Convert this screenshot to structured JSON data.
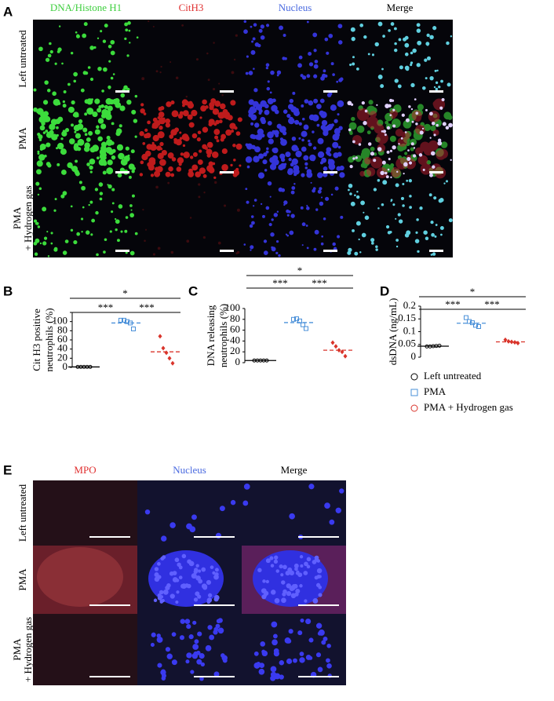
{
  "panel_a": {
    "label": "A",
    "columns": [
      "DNA/Histone  H1",
      "CitH3",
      "Nucleus",
      "Merge"
    ],
    "rows": [
      [
        "Left  untreated"
      ],
      [
        "PMA"
      ],
      [
        "PMA",
        "+ Hydrogen  gas"
      ]
    ]
  },
  "panel_e": {
    "label": "E",
    "columns": [
      "MPO",
      "Nucleus",
      "Merge"
    ],
    "rows": [
      [
        "Left  untreated"
      ],
      [
        "PMA"
      ],
      [
        "PMA",
        "+ Hydrogen  gas"
      ]
    ]
  },
  "chart_data": [
    {
      "type": "scatter",
      "panel": "B",
      "ylabel": [
        "Cit H3 positive",
        "neutrophils  (%)"
      ],
      "ylim": [
        0,
        120
      ],
      "yticks": [
        0,
        20,
        40,
        60,
        80,
        100
      ],
      "annotations": [
        "***",
        "***",
        "*"
      ],
      "series": [
        {
          "name": "Left  untreated",
          "color": "#000000",
          "marker": "circle",
          "values": [
            1,
            1,
            1,
            1,
            1
          ],
          "mean": 1
        },
        {
          "name": "PMA",
          "color": "#4a90d9",
          "marker": "square",
          "values": [
            103,
            103,
            100,
            97,
            84
          ],
          "mean": 97
        },
        {
          "name": "PMA + Hydrogen  gas",
          "color": "#d9342b",
          "marker": "diamond",
          "values": [
            68,
            42,
            32,
            20,
            9
          ],
          "mean": 34
        }
      ]
    },
    {
      "type": "scatter",
      "panel": "C",
      "ylabel": [
        "DNA releasing",
        "neutrophils  (%)"
      ],
      "ylim": [
        0,
        100
      ],
      "yticks": [
        0,
        20,
        40,
        60,
        80,
        100
      ],
      "annotations": [
        "***",
        "***",
        "*"
      ],
      "series": [
        {
          "name": "Left  untreated",
          "color": "#000000",
          "marker": "circle",
          "values": [
            4,
            4,
            4,
            4,
            4
          ],
          "mean": 4
        },
        {
          "name": "PMA",
          "color": "#4a90d9",
          "marker": "square",
          "values": [
            80,
            81,
            77,
            70,
            63
          ],
          "mean": 74
        },
        {
          "name": "PMA + Hydrogen  gas",
          "color": "#d9342b",
          "marker": "diamond",
          "values": [
            37,
            30,
            23,
            20,
            12
          ],
          "mean": 23
        }
      ]
    },
    {
      "type": "scatter",
      "panel": "D",
      "ylabel": [
        "dsDNA  (ng/mL)"
      ],
      "ylim": [
        0,
        0.2
      ],
      "yticks": [
        0,
        0.05,
        0.1,
        0.15,
        0.2
      ],
      "annotations": [
        "***",
        "***",
        "*"
      ],
      "legend": "below",
      "series": [
        {
          "name": "Left  untreated",
          "color": "#000000",
          "marker": "circle",
          "values": [
            0.042,
            0.042,
            0.043,
            0.044,
            0.045
          ],
          "mean": 0.043
        },
        {
          "name": "PMA",
          "color": "#4a90d9",
          "marker": "square",
          "values": [
            0.155,
            0.14,
            0.135,
            0.125,
            0.12
          ],
          "mean": 0.133
        },
        {
          "name": "PMA + Hydrogen  gas",
          "color": "#d9342b",
          "marker": "diamond",
          "values": [
            0.068,
            0.062,
            0.06,
            0.058,
            0.055
          ],
          "mean": 0.06
        }
      ]
    }
  ]
}
